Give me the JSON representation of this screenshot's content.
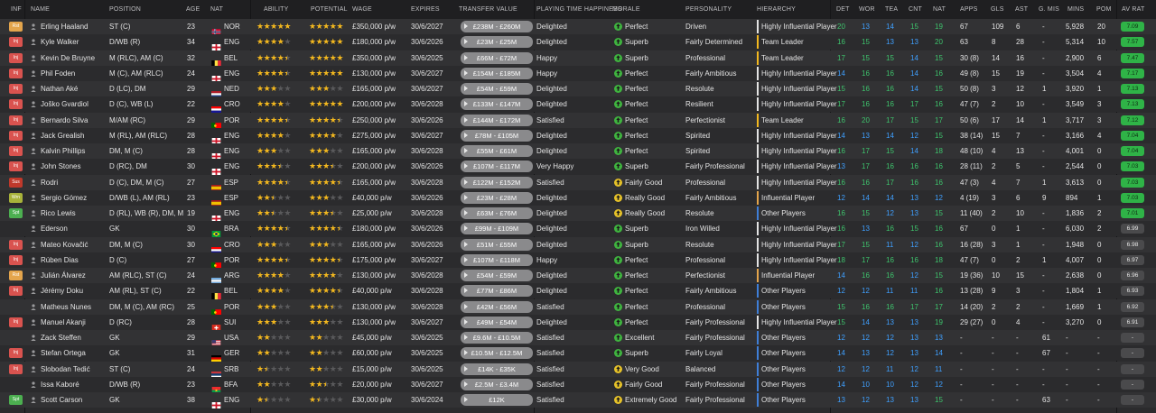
{
  "colors": {
    "accent": "#3ec46d",
    "blue": "#3fa0ff",
    "gold": "#f3b81f",
    "header_bg": "#1f1f21",
    "row_odd": "#323234",
    "row_even": "#2b2b2d"
  },
  "headers": {
    "inf": "INF",
    "name": "NAME",
    "position": "POSITION",
    "age": "AGE",
    "nat": "NAT",
    "ability": "ABILITY",
    "potential": "POTENTIAL",
    "wage": "WAGE",
    "expires": "EXPIRES",
    "transfer_value": "TRANSFER VALUE",
    "playing_time": "PLAYING TIME HAPPINESS",
    "morale": "MORALE",
    "personality": "PERSONALITY",
    "hierarchy": "HIERARCHY",
    "det": "DET",
    "wor": "WOR",
    "tea": "TEA",
    "cnt": "CNT",
    "nat2": "NAT",
    "apps": "APPS",
    "gls": "GLS",
    "ast": "AST",
    "gmis": "G. MIS",
    "mins": "MINS",
    "pom": "POM",
    "avrat": "AV RAT"
  },
  "players": [
    {
      "inf": "Rst",
      "name": "Erling Haaland",
      "pos": "ST (C)",
      "age": "23",
      "nat": "NOR",
      "ability": 5,
      "potential": 5,
      "wage": "£350,000 p/w",
      "expires": "30/6/2027",
      "tv": "£238M - £260M",
      "pt": "Delighted",
      "morale": "Perfect",
      "pers": "Driven",
      "hier": "Highly Influential Player",
      "det": "20",
      "wor": "13",
      "tea": "14",
      "cnt": "15",
      "nat2": "19",
      "apps": "67",
      "gls": "109",
      "ast": "6",
      "gmis": "-",
      "mins": "5,928",
      "pom": "20",
      "avrat": "7.09"
    },
    {
      "inf": "Inj",
      "name": "Kyle Walker",
      "pos": "D/WB (R)",
      "age": "34",
      "nat": "ENG",
      "ability": 4,
      "potential": 5,
      "wage": "£180,000 p/w",
      "expires": "30/6/2026",
      "tv": "£23M - £25M",
      "pt": "Delighted",
      "morale": "Superb",
      "pers": "Fairly Determined",
      "hier": "Team Leader",
      "det": "16",
      "wor": "15",
      "tea": "13",
      "cnt": "13",
      "nat2": "20",
      "apps": "63",
      "gls": "8",
      "ast": "28",
      "gmis": "-",
      "mins": "5,314",
      "pom": "10",
      "avrat": "7.57"
    },
    {
      "inf": "Inj",
      "name": "Kevin De Bruyne",
      "pos": "M (RLC), AM (C)",
      "age": "32",
      "nat": "BEL",
      "ability": 4.5,
      "potential": 5,
      "wage": "£350,000 p/w",
      "expires": "30/6/2025",
      "tv": "£66M - £72M",
      "pt": "Happy",
      "morale": "Superb",
      "pers": "Professional",
      "hier": "Team Leader",
      "det": "17",
      "wor": "15",
      "tea": "15",
      "cnt": "14",
      "nat2": "15",
      "apps": "30 (8)",
      "gls": "14",
      "ast": "16",
      "gmis": "-",
      "mins": "2,900",
      "pom": "6",
      "avrat": "7.47"
    },
    {
      "inf": "Inj",
      "name": "Phil Foden",
      "pos": "M (C), AM (RLC)",
      "age": "24",
      "nat": "ENG",
      "ability": 4.5,
      "potential": 5,
      "wage": "£130,000 p/w",
      "expires": "30/6/2027",
      "tv": "£154M - £185M",
      "pt": "Happy",
      "morale": "Perfect",
      "pers": "Fairly Ambitious",
      "hier": "Highly Influential Player",
      "det": "14",
      "wor": "16",
      "tea": "16",
      "cnt": "14",
      "nat2": "16",
      "apps": "49 (8)",
      "gls": "15",
      "ast": "19",
      "gmis": "-",
      "mins": "3,504",
      "pom": "4",
      "avrat": "7.17"
    },
    {
      "inf": "Inj",
      "name": "Nathan Aké",
      "pos": "D (LC), DM",
      "age": "29",
      "nat": "NED",
      "ability": 3,
      "potential": 3,
      "wage": "£165,000 p/w",
      "expires": "30/6/2027",
      "tv": "£54M - £59M",
      "pt": "Delighted",
      "morale": "Perfect",
      "pers": "Resolute",
      "hier": "Highly Influential Player",
      "det": "15",
      "wor": "16",
      "tea": "16",
      "cnt": "14",
      "nat2": "15",
      "apps": "50 (8)",
      "gls": "3",
      "ast": "12",
      "gmis": "1",
      "mins": "3,920",
      "pom": "1",
      "avrat": "7.13"
    },
    {
      "inf": "Inj",
      "name": "Joško Gvardiol",
      "pos": "D (C), WB (L)",
      "age": "22",
      "nat": "CRO",
      "ability": 4,
      "potential": 5,
      "wage": "£200,000 p/w",
      "expires": "30/6/2028",
      "tv": "£133M - £147M",
      "pt": "Delighted",
      "morale": "Perfect",
      "pers": "Resilient",
      "hier": "Highly Influential Player",
      "det": "17",
      "wor": "16",
      "tea": "16",
      "cnt": "17",
      "nat2": "16",
      "apps": "47 (7)",
      "gls": "2",
      "ast": "10",
      "gmis": "-",
      "mins": "3,549",
      "pom": "3",
      "avrat": "7.13"
    },
    {
      "inf": "Inj",
      "name": "Bernardo Silva",
      "pos": "M/AM (RC)",
      "age": "29",
      "nat": "POR",
      "ability": 4.5,
      "potential": 4.5,
      "wage": "£250,000 p/w",
      "expires": "30/6/2026",
      "tv": "£144M - £172M",
      "pt": "Satisfied",
      "morale": "Perfect",
      "pers": "Perfectionist",
      "hier": "Team Leader",
      "det": "16",
      "wor": "20",
      "tea": "17",
      "cnt": "15",
      "nat2": "17",
      "apps": "50 (6)",
      "gls": "17",
      "ast": "14",
      "gmis": "1",
      "mins": "3,717",
      "pom": "3",
      "avrat": "7.12"
    },
    {
      "inf": "Inj",
      "name": "Jack Grealish",
      "pos": "M (RL), AM (RLC)",
      "age": "28",
      "nat": "ENG",
      "ability": 4,
      "potential": 4,
      "wage": "£275,000 p/w",
      "expires": "30/6/2027",
      "tv": "£78M - £105M",
      "pt": "Delighted",
      "morale": "Perfect",
      "pers": "Spirited",
      "hier": "Highly Influential Player",
      "det": "14",
      "wor": "13",
      "tea": "14",
      "cnt": "12",
      "nat2": "15",
      "apps": "38 (14)",
      "gls": "15",
      "ast": "7",
      "gmis": "-",
      "mins": "3,166",
      "pom": "4",
      "avrat": "7.04"
    },
    {
      "inf": "Inj",
      "name": "Kalvin Phillips",
      "pos": "DM, M (C)",
      "age": "28",
      "nat": "ENG",
      "ability": 3,
      "potential": 3,
      "wage": "£165,000 p/w",
      "expires": "30/6/2028",
      "tv": "£55M - £61M",
      "pt": "Delighted",
      "morale": "Perfect",
      "pers": "Spirited",
      "hier": "Highly Influential Player",
      "det": "16",
      "wor": "17",
      "tea": "15",
      "cnt": "14",
      "nat2": "18",
      "apps": "48 (10)",
      "gls": "4",
      "ast": "13",
      "gmis": "-",
      "mins": "4,001",
      "pom": "0",
      "avrat": "7.04"
    },
    {
      "inf": "Inj",
      "name": "John Stones",
      "pos": "D (RC), DM",
      "age": "30",
      "nat": "ENG",
      "ability": 3.5,
      "potential": 3.5,
      "wage": "£200,000 p/w",
      "expires": "30/6/2026",
      "tv": "£107M - £117M",
      "pt": "Very Happy",
      "morale": "Superb",
      "pers": "Fairly Professional",
      "hier": "Highly Influential Player",
      "det": "13",
      "wor": "17",
      "tea": "16",
      "cnt": "16",
      "nat2": "16",
      "apps": "28 (11)",
      "gls": "2",
      "ast": "5",
      "gmis": "-",
      "mins": "2,544",
      "pom": "0",
      "avrat": "7.03"
    },
    {
      "inf": "Sus",
      "name": "Rodri",
      "pos": "D (C), DM, M (C)",
      "age": "27",
      "nat": "ESP",
      "ability": 4.5,
      "potential": 4.5,
      "wage": "£165,000 p/w",
      "expires": "30/6/2028",
      "tv": "£122M - £152M",
      "pt": "Satisfied",
      "morale": "Fairly Good",
      "pers": "Professional",
      "hier": "Highly Influential Player",
      "det": "16",
      "wor": "16",
      "tea": "17",
      "cnt": "16",
      "nat2": "16",
      "apps": "47 (3)",
      "gls": "4",
      "ast": "7",
      "gmis": "1",
      "mins": "3,613",
      "pom": "0",
      "avrat": "7.03"
    },
    {
      "inf": "Wrn",
      "name": "Sergio Gómez",
      "pos": "D/WB (L), AM (RL)",
      "age": "23",
      "nat": "ESP",
      "ability": 2.5,
      "potential": 3,
      "wage": "£40,000 p/w",
      "expires": "30/6/2026",
      "tv": "£23M - £28M",
      "pt": "Delighted",
      "morale": "Really Good",
      "pers": "Fairly Ambitious",
      "hier": "Influential Player",
      "det": "12",
      "wor": "14",
      "tea": "14",
      "cnt": "13",
      "nat2": "12",
      "apps": "4 (19)",
      "gls": "3",
      "ast": "6",
      "gmis": "9",
      "mins": "894",
      "pom": "1",
      "avrat": "7.03"
    },
    {
      "inf": "Spt",
      "name": "Rico Lewis",
      "pos": "D (RL), WB (R), DM, M ...",
      "age": "19",
      "nat": "ENG",
      "ability": 2.5,
      "potential": 3.5,
      "wage": "£25,000 p/w",
      "expires": "30/6/2028",
      "tv": "£63M - £76M",
      "pt": "Delighted",
      "morale": "Really Good",
      "pers": "Resolute",
      "hier": "Other Players",
      "det": "16",
      "wor": "15",
      "tea": "12",
      "cnt": "13",
      "nat2": "15",
      "apps": "11 (40)",
      "gls": "2",
      "ast": "10",
      "gmis": "-",
      "mins": "1,836",
      "pom": "2",
      "avrat": "7.01"
    },
    {
      "inf": "",
      "name": "Ederson",
      "pos": "GK",
      "age": "30",
      "nat": "BRA",
      "ability": 4.5,
      "potential": 4.5,
      "wage": "£180,000 p/w",
      "expires": "30/6/2026",
      "tv": "£99M - £109M",
      "pt": "Delighted",
      "morale": "Superb",
      "pers": "Iron Willed",
      "hier": "Highly Influential Player",
      "det": "16",
      "wor": "13",
      "tea": "16",
      "cnt": "15",
      "nat2": "16",
      "apps": "67",
      "gls": "0",
      "ast": "1",
      "gmis": "-",
      "mins": "6,030",
      "pom": "2",
      "avrat": "6.99"
    },
    {
      "inf": "Inj",
      "name": "Mateo Kovačić",
      "pos": "DM, M (C)",
      "age": "30",
      "nat": "CRO",
      "ability": 3,
      "potential": 3,
      "wage": "£165,000 p/w",
      "expires": "30/6/2026",
      "tv": "£51M - £55M",
      "pt": "Delighted",
      "morale": "Superb",
      "pers": "Resolute",
      "hier": "Highly Influential Player",
      "det": "17",
      "wor": "15",
      "tea": "11",
      "cnt": "12",
      "nat2": "16",
      "apps": "16 (28)",
      "gls": "3",
      "ast": "1",
      "gmis": "-",
      "mins": "1,948",
      "pom": "0",
      "avrat": "6.98"
    },
    {
      "inf": "Inj",
      "name": "Rúben Dias",
      "pos": "D (C)",
      "age": "27",
      "nat": "POR",
      "ability": 4.5,
      "potential": 4.5,
      "wage": "£175,000 p/w",
      "expires": "30/6/2027",
      "tv": "£107M - £118M",
      "pt": "Happy",
      "morale": "Perfect",
      "pers": "Professional",
      "hier": "Highly Influential Player",
      "det": "18",
      "wor": "17",
      "tea": "16",
      "cnt": "16",
      "nat2": "18",
      "apps": "47 (7)",
      "gls": "0",
      "ast": "2",
      "gmis": "1",
      "mins": "4,007",
      "pom": "0",
      "avrat": "6.97"
    },
    {
      "inf": "Rst",
      "name": "Julián Álvarez",
      "pos": "AM (RLC), ST (C)",
      "age": "24",
      "nat": "ARG",
      "ability": 4,
      "potential": 4,
      "wage": "£130,000 p/w",
      "expires": "30/6/2028",
      "tv": "£54M - £59M",
      "pt": "Delighted",
      "morale": "Perfect",
      "pers": "Perfectionist",
      "hier": "Influential Player",
      "det": "14",
      "wor": "16",
      "tea": "16",
      "cnt": "12",
      "nat2": "15",
      "apps": "19 (36)",
      "gls": "10",
      "ast": "15",
      "gmis": "-",
      "mins": "2,638",
      "pom": "0",
      "avrat": "6.96"
    },
    {
      "inf": "Inj",
      "name": "Jérémy Doku",
      "pos": "AM (RL), ST (C)",
      "age": "22",
      "nat": "BEL",
      "ability": 4,
      "potential": 4.5,
      "wage": "£40,000 p/w",
      "expires": "30/6/2028",
      "tv": "£77M - £86M",
      "pt": "Delighted",
      "morale": "Perfect",
      "pers": "Fairly Ambitious",
      "hier": "Other Players",
      "det": "12",
      "wor": "12",
      "tea": "11",
      "cnt": "11",
      "nat2": "16",
      "apps": "13 (28)",
      "gls": "9",
      "ast": "3",
      "gmis": "-",
      "mins": "1,804",
      "pom": "1",
      "avrat": "6.93"
    },
    {
      "inf": "",
      "name": "Matheus Nunes",
      "pos": "DM, M (C), AM (RC)",
      "age": "25",
      "nat": "POR",
      "ability": 3,
      "potential": 3.5,
      "wage": "£130,000 p/w",
      "expires": "30/6/2028",
      "tv": "£42M - £56M",
      "pt": "Satisfied",
      "morale": "Perfect",
      "pers": "Professional",
      "hier": "Other Players",
      "det": "15",
      "wor": "16",
      "tea": "16",
      "cnt": "17",
      "nat2": "17",
      "apps": "14 (20)",
      "gls": "2",
      "ast": "2",
      "gmis": "-",
      "mins": "1,669",
      "pom": "1",
      "avrat": "6.92"
    },
    {
      "inf": "Inj",
      "name": "Manuel Akanji",
      "pos": "D (RC)",
      "age": "28",
      "nat": "SUI",
      "ability": 3,
      "potential": 3,
      "wage": "£130,000 p/w",
      "expires": "30/6/2027",
      "tv": "£49M - £54M",
      "pt": "Delighted",
      "morale": "Perfect",
      "pers": "Fairly Professional",
      "hier": "Highly Influential Player",
      "det": "15",
      "wor": "14",
      "tea": "13",
      "cnt": "13",
      "nat2": "19",
      "apps": "29 (27)",
      "gls": "0",
      "ast": "4",
      "gmis": "-",
      "mins": "3,270",
      "pom": "0",
      "avrat": "6.91"
    },
    {
      "inf": "",
      "name": "Zack Steffen",
      "pos": "GK",
      "age": "29",
      "nat": "USA",
      "ability": 2,
      "potential": 2,
      "wage": "£45,000 p/w",
      "expires": "30/6/2025",
      "tv": "£9.6M - £10.5M",
      "pt": "Satisfied",
      "morale": "Excellent",
      "pers": "Fairly Professional",
      "hier": "Other Players",
      "det": "12",
      "wor": "12",
      "tea": "12",
      "cnt": "13",
      "nat2": "13",
      "apps": "-",
      "gls": "-",
      "ast": "-",
      "gmis": "61",
      "mins": "-",
      "pom": "-",
      "avrat": "-"
    },
    {
      "inf": "Inj",
      "name": "Stefan Ortega",
      "pos": "GK",
      "age": "31",
      "nat": "GER",
      "ability": 2,
      "potential": 2,
      "wage": "£60,000 p/w",
      "expires": "30/6/2025",
      "tv": "£10.5M - £12.5M",
      "pt": "Satisfied",
      "morale": "Superb",
      "pers": "Fairly Loyal",
      "hier": "Other Players",
      "det": "14",
      "wor": "13",
      "tea": "12",
      "cnt": "13",
      "nat2": "14",
      "apps": "-",
      "gls": "-",
      "ast": "-",
      "gmis": "67",
      "mins": "-",
      "pom": "-",
      "avrat": "-"
    },
    {
      "inf": "Inj",
      "name": "Slobodan Tedić",
      "pos": "ST (C)",
      "age": "24",
      "nat": "SRB",
      "ability": 1.5,
      "potential": 2,
      "wage": "£15,000 p/w",
      "expires": "30/6/2025",
      "tv": "£14K - £35K",
      "pt": "Satisfied",
      "morale": "Very Good",
      "pers": "Balanced",
      "hier": "Other Players",
      "det": "12",
      "wor": "12",
      "tea": "11",
      "cnt": "12",
      "nat2": "11",
      "apps": "-",
      "gls": "-",
      "ast": "-",
      "gmis": "-",
      "mins": "-",
      "pom": "-",
      "avrat": "-"
    },
    {
      "inf": "",
      "name": "Issa Kaboré",
      "pos": "D/WB (R)",
      "age": "23",
      "nat": "BFA",
      "ability": 2,
      "potential": 2.5,
      "wage": "£20,000 p/w",
      "expires": "30/6/2027",
      "tv": "£2.5M - £3.4M",
      "pt": "Satisfied",
      "morale": "Fairly Good",
      "pers": "Fairly Professional",
      "hier": "Other Players",
      "det": "14",
      "wor": "10",
      "tea": "10",
      "cnt": "12",
      "nat2": "12",
      "apps": "-",
      "gls": "-",
      "ast": "-",
      "gmis": "-",
      "mins": "-",
      "pom": "-",
      "avrat": "-"
    },
    {
      "inf": "Spt",
      "name": "Scott Carson",
      "pos": "GK",
      "age": "38",
      "nat": "ENG",
      "ability": 1.5,
      "potential": 1.5,
      "wage": "£30,000 p/w",
      "expires": "30/6/2024",
      "tv": "£12K",
      "pt": "Satisfied",
      "morale": "Extremely Good",
      "pers": "Fairly Professional",
      "hier": "Other Players",
      "det": "13",
      "wor": "12",
      "tea": "13",
      "cnt": "13",
      "nat2": "15",
      "apps": "-",
      "gls": "-",
      "ast": "-",
      "gmis": "63",
      "mins": "-",
      "pom": "-",
      "avrat": "-"
    }
  ]
}
